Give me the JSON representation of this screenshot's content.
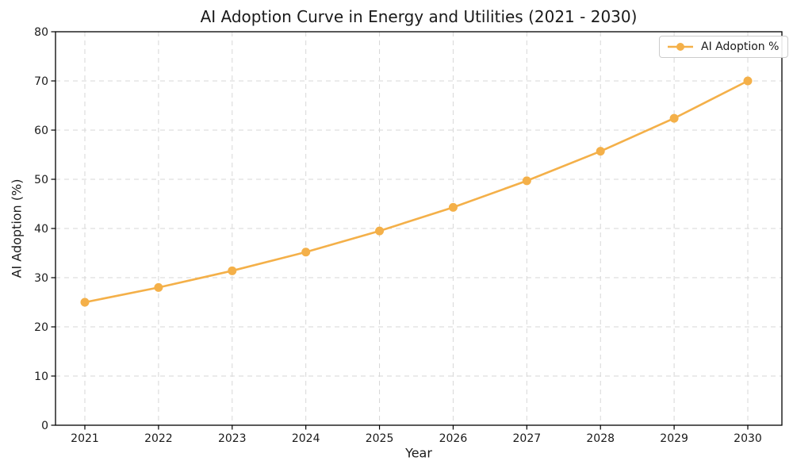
{
  "chart_data": {
    "type": "line",
    "title": "AI Adoption Curve in Energy and Utilities (2021 - 2030)",
    "xlabel": "Year",
    "ylabel": "AI Adoption (%)",
    "x": [
      2021,
      2022,
      2023,
      2024,
      2025,
      2026,
      2027,
      2028,
      2029,
      2030
    ],
    "series": [
      {
        "name": "AI Adoption %",
        "values": [
          25.0,
          28.0,
          31.4,
          35.2,
          39.5,
          44.3,
          49.7,
          55.7,
          62.4,
          70.0
        ]
      }
    ],
    "ylim": [
      0,
      80
    ],
    "yticks": [
      0,
      10,
      20,
      30,
      40,
      50,
      60,
      70,
      80
    ],
    "grid": "dashed both axes",
    "legend_position": "upper right",
    "marker": "circle"
  },
  "colors": {
    "line": "#F4B049",
    "grid": "#D7D7D7",
    "spine": "#000000",
    "text": "#1A1A1A",
    "legend_border": "#CCCCCC",
    "background": "#FFFFFF"
  }
}
